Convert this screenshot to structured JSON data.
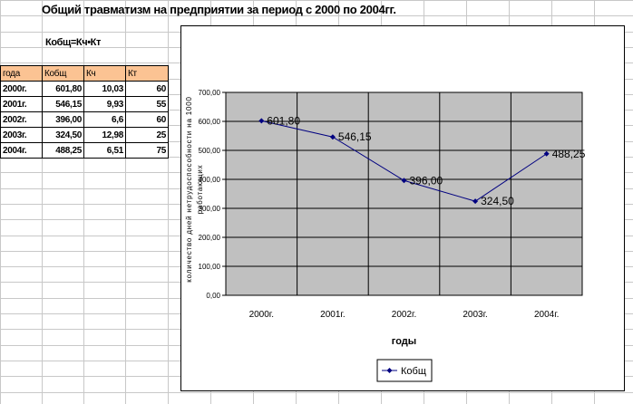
{
  "sheet": {
    "title": "Общий травматизм на предприятии за период с 2000 по 2004гг.",
    "formula": "Кобщ=Кч•Кт",
    "table": {
      "headers": [
        "года",
        "Кобщ",
        "Кч",
        "Кт"
      ],
      "rows": [
        [
          "2000г.",
          "601,80",
          "10,03",
          "60"
        ],
        [
          "2001г.",
          "546,15",
          "9,93",
          "55"
        ],
        [
          "2002г.",
          "396,00",
          "6,6",
          "60"
        ],
        [
          "2003г.",
          "324,50",
          "12,98",
          "25"
        ],
        [
          "2004г.",
          "488,25",
          "6,51",
          "75"
        ]
      ]
    }
  },
  "colors": {
    "plot_bg": "#c0c0c0",
    "line": "#000080",
    "header_fill": "#fbc393",
    "gridline": "#000000"
  },
  "chart_data": {
    "type": "line",
    "categories": [
      "2000г.",
      "2001г.",
      "2002г.",
      "2003г.",
      "2004г."
    ],
    "series": [
      {
        "name": "Кобщ",
        "values": [
          601.8,
          546.15,
          396.0,
          324.5,
          488.25
        ],
        "labels": [
          "601,80",
          "546,15",
          "396,00",
          "324,50",
          "488,25"
        ]
      }
    ],
    "ytick_labels": [
      "0,00",
      "100,00",
      "200,00",
      "300,00",
      "400,00",
      "500,00",
      "600,00",
      "700,00"
    ],
    "ylim": [
      0,
      700
    ],
    "xlabel": "годы",
    "ylabel": "количество дней нетрудоспособности на 1000 работающих",
    "grid": true,
    "legend": "bottom"
  }
}
